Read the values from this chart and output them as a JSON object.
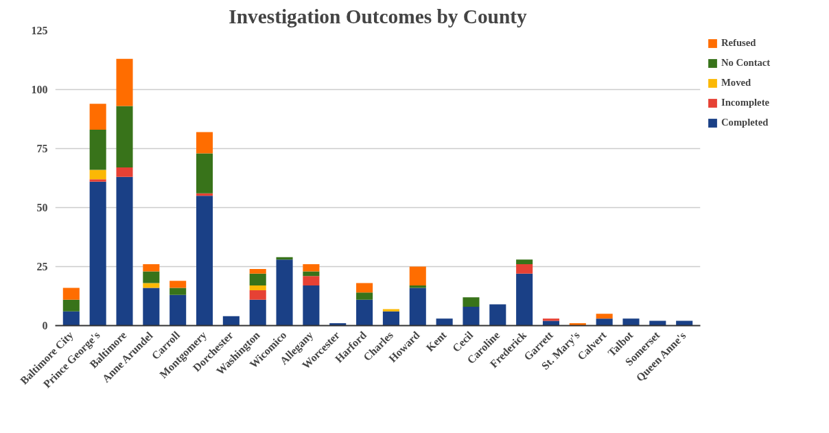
{
  "chart_data": {
    "type": "bar",
    "title": "Investigation Outcomes by County",
    "stacked": true,
    "categories": [
      "Baltimore City",
      "Prince George's",
      "Baltimore",
      "Anne Arundel",
      "Carroll",
      "Montgomery",
      "Dorchester",
      "Washington",
      "Wicomico",
      "Allegany",
      "Worcester",
      "Harford",
      "Charles",
      "Howard",
      "Kent",
      "Cecil",
      "Caroline",
      "Frederick",
      "Garrett",
      "St. Mary's",
      "Calvert",
      "Talbot",
      "Somerset",
      "Queen Anne's"
    ],
    "series": [
      {
        "name": "Completed",
        "color": "#1a4086",
        "values": [
          6,
          61,
          63,
          16,
          13,
          55,
          4,
          11,
          28,
          17,
          1,
          11,
          6,
          16,
          3,
          8,
          9,
          22,
          2,
          0,
          3,
          3,
          2,
          2
        ]
      },
      {
        "name": "Incomplete",
        "color": "#e64134",
        "values": [
          0,
          1,
          4,
          0,
          0,
          1,
          0,
          4,
          0,
          4,
          0,
          0,
          0,
          0,
          0,
          0,
          0,
          4,
          1,
          0,
          0,
          0,
          0,
          0
        ]
      },
      {
        "name": "Moved",
        "color": "#fbb805",
        "values": [
          0,
          4,
          0,
          2,
          0,
          0,
          0,
          2,
          0,
          0,
          0,
          0,
          1,
          0,
          0,
          0,
          0,
          0,
          0,
          0,
          0,
          0,
          0,
          0
        ]
      },
      {
        "name": "No Contact",
        "color": "#38731a",
        "values": [
          5,
          17,
          26,
          5,
          3,
          17,
          0,
          5,
          1,
          2,
          0,
          3,
          0,
          1,
          0,
          4,
          0,
          2,
          0,
          0,
          0,
          0,
          0,
          0
        ]
      },
      {
        "name": "Refused",
        "color": "#ff6d00",
        "values": [
          5,
          11,
          20,
          3,
          3,
          9,
          0,
          2,
          0,
          3,
          0,
          4,
          0,
          8,
          0,
          0,
          0,
          0,
          0,
          1,
          2,
          0,
          0,
          0
        ]
      }
    ],
    "ylim": [
      0,
      125
    ],
    "yticks": [
      0,
      25,
      50,
      75,
      100,
      125
    ],
    "grid": "y",
    "legend": "right"
  }
}
